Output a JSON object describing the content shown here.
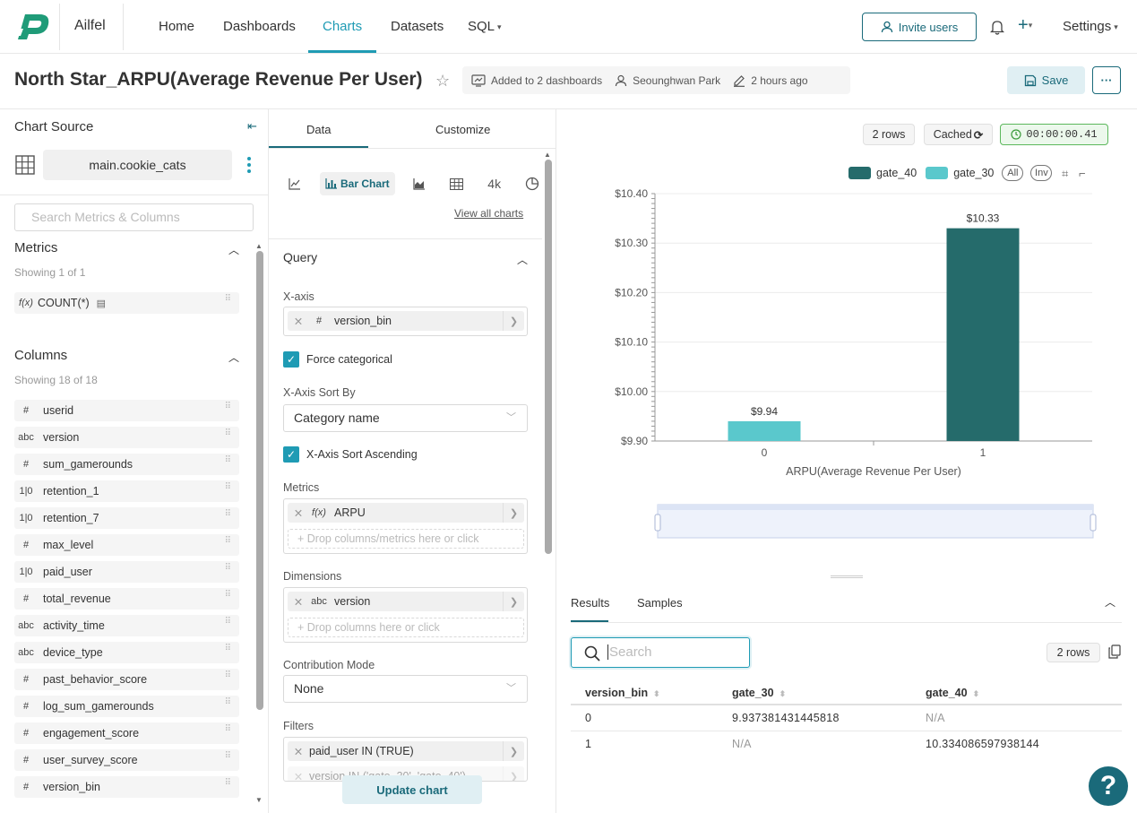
{
  "nav": {
    "brand": "Ailfel",
    "items": [
      "Home",
      "Dashboards",
      "Charts",
      "Datasets",
      "SQL"
    ],
    "active": "Charts",
    "invite_label": "Invite users",
    "settings_label": "Settings"
  },
  "header": {
    "title": "North Star_ARPU(Average Revenue Per User)",
    "dashboards_meta": "Added to 2 dashboards",
    "owner": "Seounghwan Park",
    "modified": "2 hours ago",
    "save_label": "Save"
  },
  "left": {
    "source_title": "Chart Source",
    "dataset": "main.cookie_cats",
    "search_placeholder": "Search Metrics & Columns",
    "metrics_title": "Metrics",
    "metrics_showing": "Showing 1 of 1",
    "metrics": [
      {
        "type": "f(x)",
        "name": "COUNT(*)"
      }
    ],
    "columns_title": "Columns",
    "columns_showing": "Showing 18 of 18",
    "columns": [
      {
        "type": "#",
        "name": "userid"
      },
      {
        "type": "abc",
        "name": "version"
      },
      {
        "type": "#",
        "name": "sum_gamerounds"
      },
      {
        "type": "1|0",
        "name": "retention_1"
      },
      {
        "type": "1|0",
        "name": "retention_7"
      },
      {
        "type": "#",
        "name": "max_level"
      },
      {
        "type": "1|0",
        "name": "paid_user"
      },
      {
        "type": "#",
        "name": "total_revenue"
      },
      {
        "type": "abc",
        "name": "activity_time"
      },
      {
        "type": "abc",
        "name": "device_type"
      },
      {
        "type": "#",
        "name": "past_behavior_score"
      },
      {
        "type": "#",
        "name": "log_sum_gamerounds"
      },
      {
        "type": "#",
        "name": "engagement_score"
      },
      {
        "type": "#",
        "name": "user_survey_score"
      },
      {
        "type": "#",
        "name": "version_bin"
      }
    ]
  },
  "control": {
    "tabs": [
      "Data",
      "Customize"
    ],
    "active_tab": "Data",
    "chart_types": [
      "line-chart-icon",
      "Bar Chart",
      "area-chart-icon",
      "table-icon",
      "4k",
      "pie-chart-icon"
    ],
    "view_all": "View all charts",
    "query_title": "Query",
    "xaxis_label": "X-axis",
    "xaxis_type": "#",
    "xaxis_value": "version_bin",
    "force_categorical": "Force categorical",
    "sort_by_label": "X-Axis Sort By",
    "sort_by_value": "Category name",
    "sort_asc": "X-Axis Sort Ascending",
    "metrics_label": "Metrics",
    "metric_type": "f(x)",
    "metric_value": "ARPU",
    "metric_drop": "Drop columns/metrics here or click",
    "dimensions_label": "Dimensions",
    "dimension_type": "abc",
    "dimension_value": "version",
    "dimension_drop": "Drop columns here or click",
    "contribution_label": "Contribution Mode",
    "contribution_value": "None",
    "filters_label": "Filters",
    "filter1": "paid_user IN (TRUE)",
    "filter2": "version IN ('gate_30', 'gate_40')",
    "update_label": "Update chart"
  },
  "chart_meta": {
    "rows": "2 rows",
    "cached": "Cached",
    "timer": "00:00:00.41"
  },
  "chart_data": {
    "type": "bar",
    "title": "",
    "xlabel": "ARPU(Average Revenue Per User)",
    "ylabel": "",
    "categories": [
      "0",
      "1"
    ],
    "series": [
      {
        "name": "gate_40",
        "color": "#256b6b",
        "values": [
          null,
          10.33
        ]
      },
      {
        "name": "gate_30",
        "color": "#5ac8cc",
        "values": [
          9.94,
          null
        ]
      }
    ],
    "data_labels": [
      "$9.94",
      "$10.33"
    ],
    "yticks": [
      "$9.90",
      "$10.00",
      "$10.10",
      "$10.20",
      "$10.30",
      "$10.40"
    ],
    "ylim": [
      9.9,
      10.4
    ],
    "legend_buttons": [
      "All",
      "Inv"
    ],
    "legend_position": "top-right",
    "grid": true
  },
  "results": {
    "tabs": [
      "Results",
      "Samples"
    ],
    "search_placeholder": "Search",
    "rows": "2 rows",
    "columns": [
      "version_bin",
      "gate_30",
      "gate_40"
    ],
    "data": [
      [
        "0",
        "9.937381431445818",
        "N/A"
      ],
      [
        "1",
        "N/A",
        "10.334086597938144"
      ]
    ]
  },
  "help": "?"
}
